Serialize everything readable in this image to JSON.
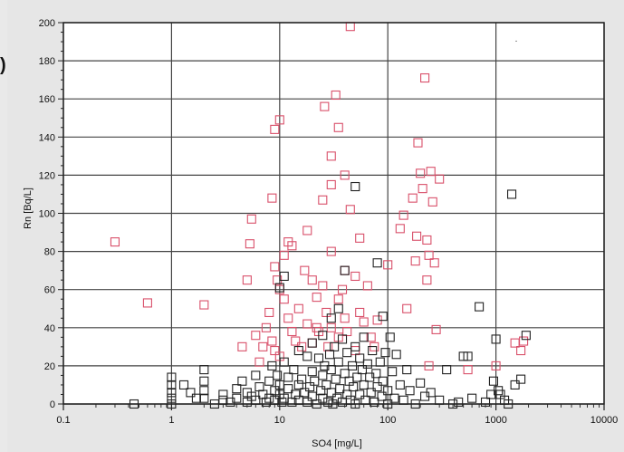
{
  "decor": {
    "stray_paren": ")"
  },
  "chart_data": {
    "type": "scatter",
    "xlabel": "SO4 [mg/L]",
    "ylabel": "Rn [Bq/L]",
    "x_scale": "log",
    "xlim": [
      0.1,
      10000
    ],
    "ylim": [
      0,
      200
    ],
    "x_ticks": [
      0.1,
      1,
      10,
      100,
      1000,
      10000
    ],
    "x_tick_labels": [
      "0.1",
      "1",
      "10",
      "100",
      "1000",
      "10000"
    ],
    "y_ticks": [
      0,
      20,
      40,
      60,
      80,
      100,
      120,
      140,
      160,
      180,
      200
    ],
    "y_tick_labels": [
      "0",
      "20",
      "40",
      "60",
      "80",
      "100",
      "120",
      "140",
      "160",
      "180",
      "200"
    ],
    "grid": true,
    "plot_background": "#ffffff",
    "series": [
      {
        "color": "#d9506a",
        "marker": "open-square",
        "points": [
          [
            0.3,
            85
          ],
          [
            0.6,
            53
          ],
          [
            2,
            52
          ],
          [
            4.5,
            30
          ],
          [
            5,
            65
          ],
          [
            5.3,
            84
          ],
          [
            5.5,
            97
          ],
          [
            6,
            36
          ],
          [
            6.5,
            22
          ],
          [
            7,
            30
          ],
          [
            7.5,
            40
          ],
          [
            8,
            48
          ],
          [
            8.5,
            108
          ],
          [
            8.5,
            33
          ],
          [
            9,
            144
          ],
          [
            9,
            72
          ],
          [
            9,
            28
          ],
          [
            9.5,
            65
          ],
          [
            10,
            60
          ],
          [
            10,
            149
          ],
          [
            10,
            25
          ],
          [
            11,
            55
          ],
          [
            11,
            78
          ],
          [
            12,
            45
          ],
          [
            12,
            85
          ],
          [
            13,
            83
          ],
          [
            13,
            38
          ],
          [
            14,
            33
          ],
          [
            15,
            50
          ],
          [
            16,
            30
          ],
          [
            17,
            70
          ],
          [
            18,
            91
          ],
          [
            18,
            42
          ],
          [
            20,
            65
          ],
          [
            20,
            32
          ],
          [
            22,
            56
          ],
          [
            22,
            40
          ],
          [
            23,
            38
          ],
          [
            25,
            107
          ],
          [
            25,
            62
          ],
          [
            26,
            156
          ],
          [
            27,
            48
          ],
          [
            28,
            30
          ],
          [
            30,
            130
          ],
          [
            30,
            115
          ],
          [
            30,
            80
          ],
          [
            30,
            40
          ],
          [
            33,
            162
          ],
          [
            35,
            145
          ],
          [
            35,
            55
          ],
          [
            35,
            35
          ],
          [
            38,
            60
          ],
          [
            40,
            120
          ],
          [
            40,
            70
          ],
          [
            40,
            45
          ],
          [
            42,
            38
          ],
          [
            45,
            198
          ],
          [
            45,
            102
          ],
          [
            50,
            67
          ],
          [
            50,
            28
          ],
          [
            55,
            87
          ],
          [
            55,
            48
          ],
          [
            60,
            43
          ],
          [
            65,
            62
          ],
          [
            70,
            35
          ],
          [
            75,
            30
          ],
          [
            80,
            44
          ],
          [
            100,
            73
          ],
          [
            130,
            92
          ],
          [
            140,
            99
          ],
          [
            150,
            50
          ],
          [
            170,
            108
          ],
          [
            180,
            75
          ],
          [
            185,
            88
          ],
          [
            190,
            137
          ],
          [
            200,
            121
          ],
          [
            210,
            113
          ],
          [
            220,
            171
          ],
          [
            230,
            86
          ],
          [
            230,
            65
          ],
          [
            240,
            78
          ],
          [
            250,
            122
          ],
          [
            260,
            106
          ],
          [
            270,
            74
          ],
          [
            280,
            39
          ],
          [
            300,
            118
          ],
          [
            550,
            18
          ],
          [
            1000,
            20
          ],
          [
            1500,
            32
          ],
          [
            1700,
            28
          ],
          [
            1800,
            33
          ],
          [
            240,
            20
          ]
        ]
      },
      {
        "color": "#222222",
        "marker": "open-square",
        "points": [
          [
            0.45,
            0
          ],
          [
            1,
            14
          ],
          [
            1,
            10
          ],
          [
            1,
            6
          ],
          [
            1,
            3
          ],
          [
            1,
            0
          ],
          [
            1.3,
            10
          ],
          [
            1.5,
            6
          ],
          [
            1.7,
            3
          ],
          [
            2,
            18
          ],
          [
            2,
            12
          ],
          [
            2,
            7
          ],
          [
            2,
            3
          ],
          [
            2.5,
            0
          ],
          [
            3,
            2
          ],
          [
            3,
            5
          ],
          [
            3.5,
            1
          ],
          [
            4,
            8
          ],
          [
            4,
            3
          ],
          [
            4.5,
            12
          ],
          [
            5,
            6
          ],
          [
            5,
            1
          ],
          [
            5.5,
            4
          ],
          [
            6,
            15
          ],
          [
            6,
            2
          ],
          [
            6.5,
            9
          ],
          [
            7,
            5
          ],
          [
            7.5,
            1
          ],
          [
            8,
            12
          ],
          [
            8,
            3
          ],
          [
            8.5,
            20
          ],
          [
            9,
            7
          ],
          [
            9,
            2
          ],
          [
            9.5,
            15
          ],
          [
            10,
            61
          ],
          [
            10,
            10
          ],
          [
            10,
            5
          ],
          [
            10.5,
            1
          ],
          [
            11,
            67
          ],
          [
            11,
            22
          ],
          [
            11,
            3
          ],
          [
            12,
            14
          ],
          [
            12,
            8
          ],
          [
            13,
            1
          ],
          [
            13.5,
            18
          ],
          [
            14,
            5
          ],
          [
            15,
            28
          ],
          [
            15,
            10
          ],
          [
            15,
            2
          ],
          [
            16,
            13
          ],
          [
            17,
            6
          ],
          [
            18,
            25
          ],
          [
            18,
            1
          ],
          [
            19,
            9
          ],
          [
            20,
            32
          ],
          [
            20,
            17
          ],
          [
            20,
            4
          ],
          [
            21,
            12
          ],
          [
            22,
            0
          ],
          [
            23,
            24
          ],
          [
            24,
            7
          ],
          [
            25,
            36
          ],
          [
            25,
            15
          ],
          [
            25,
            3
          ],
          [
            26,
            20
          ],
          [
            27,
            10
          ],
          [
            28,
            1
          ],
          [
            29,
            26
          ],
          [
            30,
            45
          ],
          [
            30,
            18
          ],
          [
            30,
            6
          ],
          [
            31,
            0
          ],
          [
            32,
            30
          ],
          [
            33,
            13
          ],
          [
            34,
            3
          ],
          [
            35,
            50
          ],
          [
            35,
            22
          ],
          [
            36,
            8
          ],
          [
            38,
            34
          ],
          [
            38,
            1
          ],
          [
            40,
            70
          ],
          [
            40,
            16
          ],
          [
            42,
            27
          ],
          [
            42,
            5
          ],
          [
            44,
            12
          ],
          [
            45,
            2
          ],
          [
            47,
            20
          ],
          [
            48,
            9
          ],
          [
            50,
            114
          ],
          [
            50,
            30
          ],
          [
            50,
            0
          ],
          [
            52,
            14
          ],
          [
            55,
            24
          ],
          [
            55,
            5
          ],
          [
            58,
            18
          ],
          [
            60,
            35
          ],
          [
            60,
            10
          ],
          [
            62,
            2
          ],
          [
            65,
            21
          ],
          [
            68,
            14
          ],
          [
            70,
            6
          ],
          [
            72,
            28
          ],
          [
            75,
            1
          ],
          [
            78,
            16
          ],
          [
            80,
            74
          ],
          [
            80,
            9
          ],
          [
            85,
            22
          ],
          [
            88,
            4
          ],
          [
            90,
            46
          ],
          [
            90,
            12
          ],
          [
            95,
            27
          ],
          [
            100,
            7
          ],
          [
            100,
            0
          ],
          [
            105,
            35
          ],
          [
            110,
            17
          ],
          [
            115,
            3
          ],
          [
            120,
            26
          ],
          [
            130,
            10
          ],
          [
            140,
            2
          ],
          [
            150,
            18
          ],
          [
            160,
            7
          ],
          [
            180,
            0
          ],
          [
            200,
            11
          ],
          [
            220,
            4
          ],
          [
            250,
            6
          ],
          [
            300,
            2
          ],
          [
            350,
            18
          ],
          [
            400,
            0
          ],
          [
            450,
            1
          ],
          [
            500,
            25
          ],
          [
            550,
            25
          ],
          [
            600,
            3
          ],
          [
            700,
            51
          ],
          [
            800,
            1
          ],
          [
            900,
            5
          ],
          [
            950,
            12
          ],
          [
            1000,
            34
          ],
          [
            1050,
            7
          ],
          [
            1100,
            5
          ],
          [
            1200,
            2
          ],
          [
            1300,
            0
          ],
          [
            1400,
            110
          ],
          [
            1500,
            10
          ],
          [
            1700,
            13
          ],
          [
            1900,
            36
          ]
        ]
      }
    ],
    "stray_mark": {
      "x": 1500,
      "y": 190,
      "glyph": "."
    }
  }
}
